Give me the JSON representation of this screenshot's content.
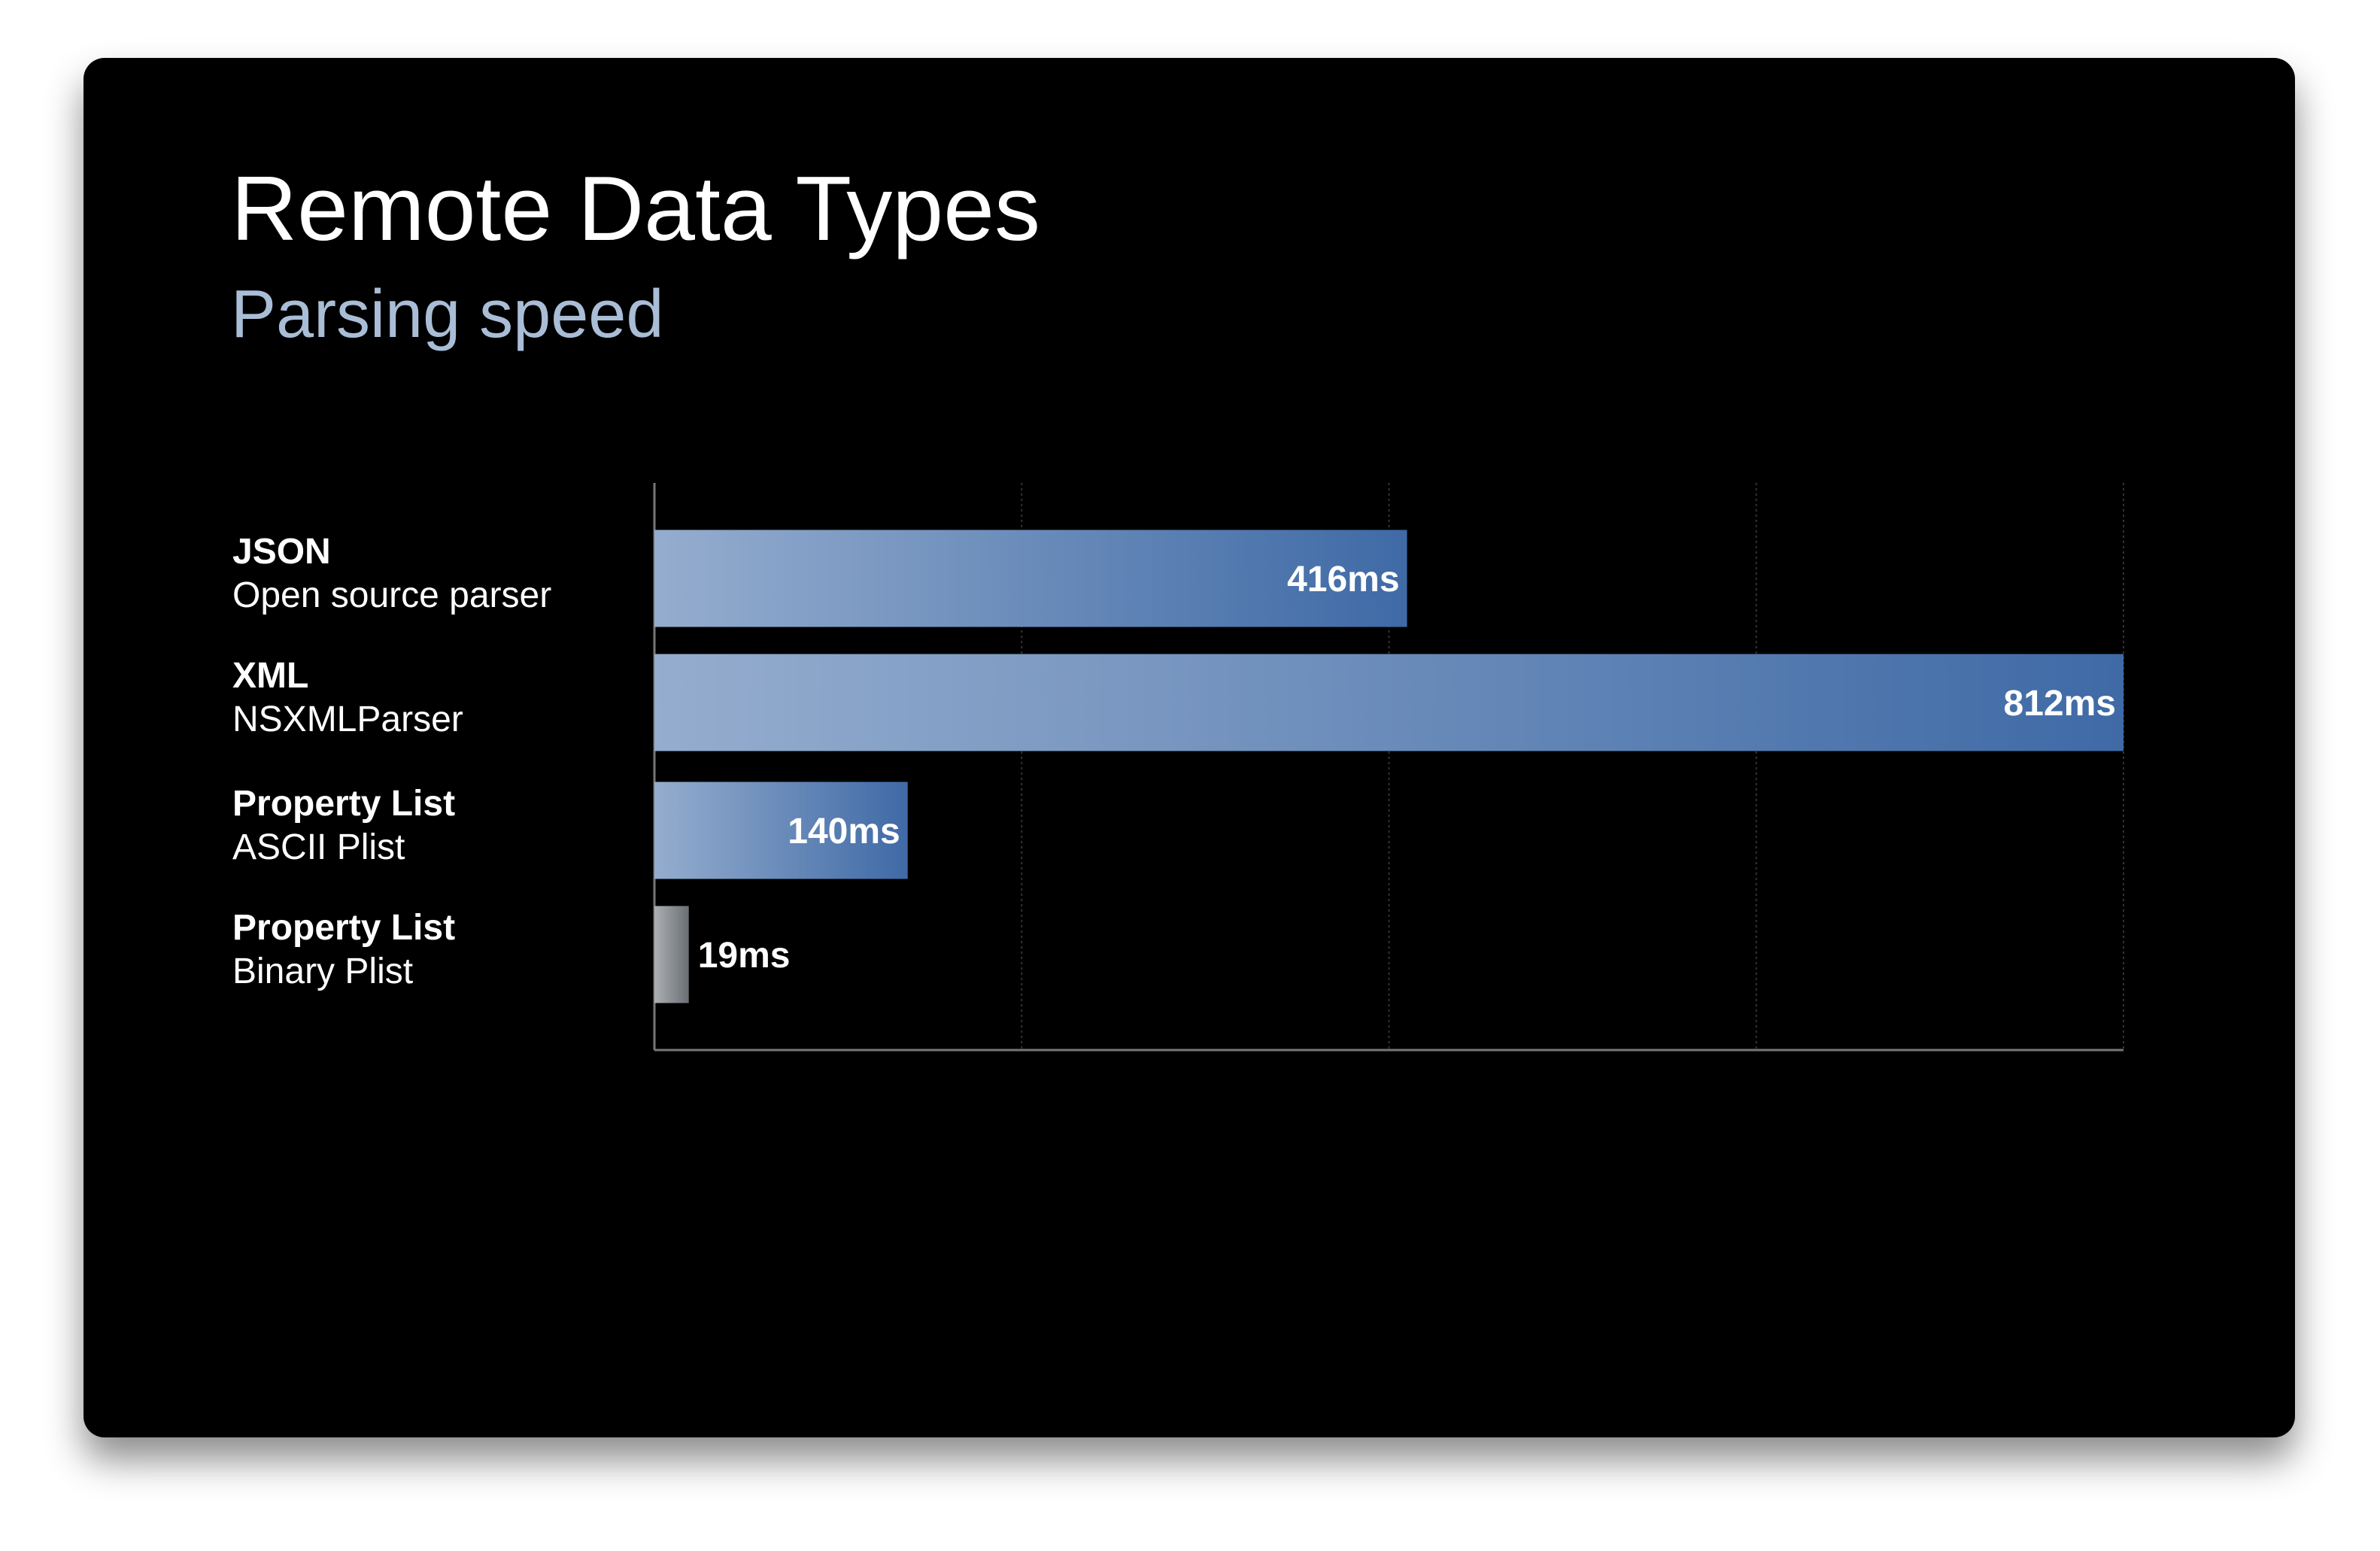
{
  "chart_data": {
    "type": "hbar",
    "title": "Remote Data Types",
    "subtitle": "Parsing speed",
    "categories": [
      {
        "name": "JSON",
        "detail": "Open source parser"
      },
      {
        "name": "XML",
        "detail": "NSXMLParser"
      },
      {
        "name": "Property List",
        "detail": "ASCII Plist"
      },
      {
        "name": "Property List",
        "detail": "Binary Plist"
      }
    ],
    "values": [
      416,
      812,
      140,
      19
    ],
    "value_labels": [
      "416ms",
      "812ms",
      "140ms",
      "19ms"
    ],
    "colors": [
      "#3f6aa6",
      "#3f6aa6",
      "#3f6aa6",
      "#6a6f75"
    ],
    "xlim": [
      0,
      812
    ],
    "xticks": [
      0,
      203,
      406,
      609,
      812
    ],
    "grid": true
  }
}
